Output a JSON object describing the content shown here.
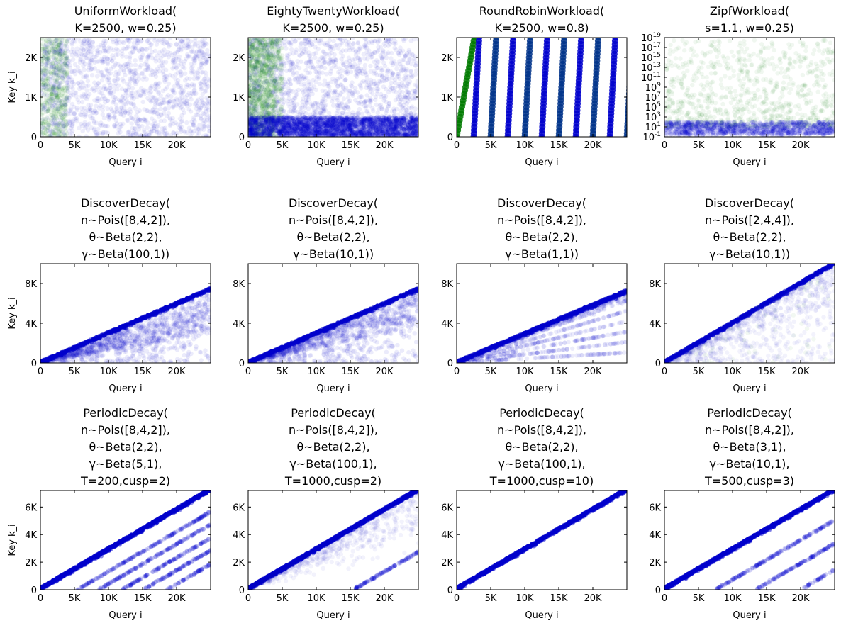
{
  "colors": {
    "blue": "#0000cc",
    "green": "#007a00",
    "frame": "#000000"
  },
  "chart_data": [
    {
      "type": "scatter",
      "row": 0,
      "title_lines": [
        "UniformWorkload(",
        "K=2500, w=0.25)"
      ],
      "xlabel": "Query i",
      "ylabel": "Key k_i",
      "xlim": [
        0,
        25000
      ],
      "ylim": [
        0,
        2500
      ],
      "yscale": "linear",
      "xticks": [
        0,
        5000,
        10000,
        15000,
        20000
      ],
      "xticklabels": [
        "0",
        "5K",
        "10K",
        "15K",
        "20K"
      ],
      "yticks": [
        0,
        1000,
        2000
      ],
      "yticklabels": [
        "0",
        "1K",
        "2K"
      ],
      "pattern": "uniform",
      "series": [
        {
          "color": "green"
        },
        {
          "color": "blue"
        }
      ]
    },
    {
      "type": "scatter",
      "row": 0,
      "title_lines": [
        "EightyTwentyWorkload(",
        "K=2500, w=0.25)"
      ],
      "xlabel": "Query i",
      "ylabel": "",
      "xlim": [
        0,
        25000
      ],
      "ylim": [
        0,
        2500
      ],
      "yscale": "linear",
      "xticks": [
        0,
        5000,
        10000,
        15000,
        20000
      ],
      "xticklabels": [
        "0",
        "5K",
        "10K",
        "15K",
        "20K"
      ],
      "yticks": [
        0,
        1000,
        2000
      ],
      "yticklabels": [
        "0",
        "1K",
        "2K"
      ],
      "pattern": "eighty_twenty",
      "hot_key_max": 500,
      "series": [
        {
          "color": "green"
        },
        {
          "color": "blue"
        }
      ]
    },
    {
      "type": "scatter",
      "row": 0,
      "title_lines": [
        "RoundRobinWorkload(",
        "K=2500, w=0.8)"
      ],
      "xlabel": "Query i",
      "ylabel": "",
      "xlim": [
        0,
        25000
      ],
      "ylim": [
        0,
        2500
      ],
      "yscale": "linear",
      "xticks": [
        0,
        5000,
        10000,
        15000,
        20000
      ],
      "xticklabels": [
        "0",
        "5K",
        "10K",
        "15K",
        "20K"
      ],
      "yticks": [
        0,
        1000,
        2000
      ],
      "yticklabels": [
        "0",
        "1K",
        "2K"
      ],
      "pattern": "round_robin",
      "period": 2500,
      "series": [
        {
          "color": "green"
        },
        {
          "color": "blue"
        }
      ]
    },
    {
      "type": "scatter",
      "row": 0,
      "title_lines": [
        "ZipfWorkload(",
        "s=1.1, w=0.25)"
      ],
      "xlabel": "Query i",
      "ylabel": "",
      "xlim": [
        0,
        25000
      ],
      "ylim": [
        0.1,
        1e+19
      ],
      "yscale": "log",
      "xticks": [
        0,
        5000,
        10000,
        15000,
        20000
      ],
      "xticklabels": [
        "0",
        "5K",
        "10K",
        "15K",
        "20K"
      ],
      "yticks_exp": [
        -1,
        1,
        3,
        5,
        7,
        9,
        11,
        13,
        15,
        17,
        19
      ],
      "pattern": "zipf",
      "series": [
        {
          "color": "green"
        },
        {
          "color": "blue"
        }
      ]
    },
    {
      "type": "scatter",
      "row": 1,
      "title_lines": [
        "DiscoverDecay(",
        "n~Pois([8,4,2]),",
        "θ~Beta(2,2),",
        "γ~Beta(100,1))"
      ],
      "xlabel": "Query i",
      "ylabel": "Key k_i",
      "xlim": [
        0,
        25000
      ],
      "ylim": [
        0,
        10000
      ],
      "yscale": "linear",
      "xticks": [
        0,
        5000,
        10000,
        15000,
        20000
      ],
      "xticklabels": [
        "0",
        "5K",
        "10K",
        "15K",
        "20K"
      ],
      "yticks": [
        0,
        4000,
        8000
      ],
      "yticklabels": [
        "0",
        "4K",
        "8K"
      ],
      "pattern": "discover",
      "top_end": 7400,
      "band": 0.85,
      "series": [
        {
          "color": "green"
        },
        {
          "color": "blue"
        }
      ]
    },
    {
      "type": "scatter",
      "row": 1,
      "title_lines": [
        "DiscoverDecay(",
        "n~Pois([8,4,2]),",
        "θ~Beta(2,2),",
        "γ~Beta(10,1))"
      ],
      "xlabel": "Query i",
      "ylabel": "",
      "xlim": [
        0,
        25000
      ],
      "ylim": [
        0,
        10000
      ],
      "yscale": "linear",
      "xticks": [
        0,
        5000,
        10000,
        15000,
        20000
      ],
      "xticklabels": [
        "0",
        "5K",
        "10K",
        "15K",
        "20K"
      ],
      "yticks": [
        0,
        4000,
        8000
      ],
      "yticklabels": [
        "0",
        "4K",
        "8K"
      ],
      "pattern": "discover",
      "top_end": 7400,
      "band": 0.55,
      "series": [
        {
          "color": "green"
        },
        {
          "color": "blue"
        }
      ]
    },
    {
      "type": "scatter",
      "row": 1,
      "title_lines": [
        "DiscoverDecay(",
        "n~Pois([8,4,2]),",
        "θ~Beta(2,2),",
        "γ~Beta(1,1))"
      ],
      "xlabel": "Query i",
      "ylabel": "",
      "xlim": [
        0,
        25000
      ],
      "ylim": [
        0,
        10000
      ],
      "yscale": "linear",
      "xticks": [
        0,
        5000,
        10000,
        15000,
        20000
      ],
      "xticklabels": [
        "0",
        "5K",
        "10K",
        "15K",
        "20K"
      ],
      "yticks": [
        0,
        4000,
        8000
      ],
      "yticklabels": [
        "0",
        "4K",
        "8K"
      ],
      "pattern": "discover_bands",
      "top_end": 7200,
      "band": 0.3,
      "series": [
        {
          "color": "green"
        },
        {
          "color": "blue"
        }
      ]
    },
    {
      "type": "scatter",
      "row": 1,
      "title_lines": [
        "DiscoverDecay(",
        "n~Pois([2,4,4]),",
        "θ~Beta(2,2),",
        "γ~Beta(10,1))"
      ],
      "xlabel": "Query i",
      "ylabel": "",
      "xlim": [
        0,
        25000
      ],
      "ylim": [
        0,
        10000
      ],
      "yscale": "linear",
      "xticks": [
        0,
        5000,
        10000,
        15000,
        20000
      ],
      "xticklabels": [
        "0",
        "5K",
        "10K",
        "15K",
        "20K"
      ],
      "yticks": [
        0,
        4000,
        8000
      ],
      "yticklabels": [
        "0",
        "4K",
        "8K"
      ],
      "pattern": "discover_sparse",
      "top_end": 10000,
      "band": 0.2,
      "series": [
        {
          "color": "green"
        },
        {
          "color": "blue"
        }
      ]
    },
    {
      "type": "scatter",
      "row": 2,
      "title_lines": [
        "PeriodicDecay(",
        "n~Pois([8,4,2]),",
        "θ~Beta(2,2),",
        "γ~Beta(5,1),",
        "T=200,cusp=2)"
      ],
      "xlabel": "Query i",
      "ylabel": "Key k_i",
      "xlim": [
        0,
        25000
      ],
      "ylim": [
        0,
        7200
      ],
      "yscale": "linear",
      "xticks": [
        0,
        5000,
        10000,
        15000,
        20000
      ],
      "xticklabels": [
        "0",
        "5K",
        "10K",
        "15K",
        "20K"
      ],
      "yticks": [
        0,
        2000,
        4000,
        6000
      ],
      "yticklabels": [
        "0",
        "2K",
        "4K",
        "6K"
      ],
      "pattern": "periodic",
      "top_end": 7200,
      "offsets": [
        1700,
        2600,
        3600,
        4500,
        5500
      ],
      "series": [
        {
          "color": "green"
        },
        {
          "color": "blue"
        }
      ]
    },
    {
      "type": "scatter",
      "row": 2,
      "title_lines": [
        "PeriodicDecay(",
        "n~Pois([8,4,2]),",
        "θ~Beta(2,2),",
        "γ~Beta(100,1),",
        "T=1000,cusp=2)"
      ],
      "xlabel": "Query i",
      "ylabel": "",
      "xlim": [
        0,
        25000
      ],
      "ylim": [
        0,
        7200
      ],
      "yscale": "linear",
      "xticks": [
        0,
        5000,
        10000,
        15000,
        20000
      ],
      "xticklabels": [
        "0",
        "5K",
        "10K",
        "15K",
        "20K"
      ],
      "yticks": [
        0,
        2000,
        4000,
        6000
      ],
      "yticklabels": [
        "0",
        "2K",
        "4K",
        "6K"
      ],
      "pattern": "periodic_diffuse",
      "top_end": 7200,
      "offsets": [
        4600
      ],
      "series": [
        {
          "color": "green"
        },
        {
          "color": "blue"
        }
      ]
    },
    {
      "type": "scatter",
      "row": 2,
      "title_lines": [
        "PeriodicDecay(",
        "n~Pois([8,4,2]),",
        "θ~Beta(2,2),",
        "γ~Beta(100,1),",
        "T=1000,cusp=10)"
      ],
      "xlabel": "Query i",
      "ylabel": "",
      "xlim": [
        0,
        25000
      ],
      "ylim": [
        0,
        7200
      ],
      "yscale": "linear",
      "xticks": [
        0,
        5000,
        10000,
        15000,
        20000
      ],
      "xticklabels": [
        "0",
        "5K",
        "10K",
        "15K",
        "20K"
      ],
      "yticks": [
        0,
        2000,
        4000,
        6000
      ],
      "yticklabels": [
        "0",
        "2K",
        "4K",
        "6K"
      ],
      "pattern": "periodic_clean",
      "top_end": 7200,
      "offsets": [
        8000
      ],
      "series": [
        {
          "color": "green"
        },
        {
          "color": "blue"
        }
      ]
    },
    {
      "type": "scatter",
      "row": 2,
      "title_lines": [
        "PeriodicDecay(",
        "n~Pois([8,4,2]),",
        "θ~Beta(3,1),",
        "γ~Beta(10,1),",
        "T=500,cusp=3)"
      ],
      "xlabel": "Query i",
      "ylabel": "",
      "xlim": [
        0,
        25000
      ],
      "ylim": [
        0,
        7200
      ],
      "yscale": "linear",
      "xticks": [
        0,
        5000,
        10000,
        15000,
        20000
      ],
      "xticklabels": [
        "0",
        "5K",
        "10K",
        "15K",
        "20K"
      ],
      "yticks": [
        0,
        2000,
        4000,
        6000
      ],
      "yticklabels": [
        "0",
        "2K",
        "4K",
        "6K"
      ],
      "pattern": "periodic",
      "top_end": 7200,
      "offsets": [
        2300,
        4000,
        5900
      ],
      "series": [
        {
          "color": "green"
        },
        {
          "color": "blue"
        }
      ]
    }
  ]
}
